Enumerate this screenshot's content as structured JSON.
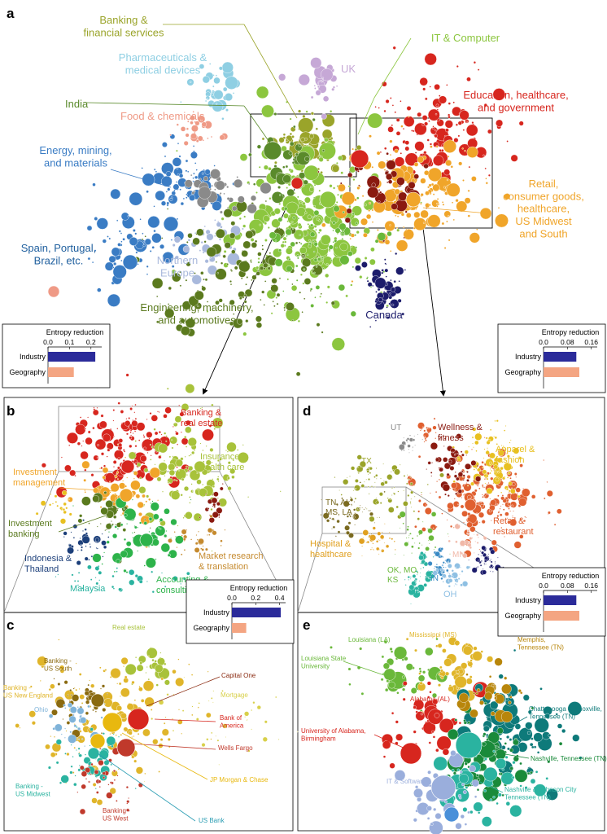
{
  "panels": {
    "a": {
      "letter": "a",
      "labels": [
        {
          "id": "banking",
          "text": [
            "Banking &",
            "financial services"
          ],
          "color": "#9aa42a"
        },
        {
          "id": "pharma",
          "text": [
            "Pharmaceuticals &",
            "medical devices"
          ],
          "color": "#8fcfe3"
        },
        {
          "id": "uk",
          "text": [
            "UK"
          ],
          "color": "#c6a8d6"
        },
        {
          "id": "it",
          "text": [
            "IT & Computer"
          ],
          "color": "#8cc63f"
        },
        {
          "id": "india",
          "text": [
            "India"
          ],
          "color": "#5a8a2b"
        },
        {
          "id": "education",
          "text": [
            "Education, healthcare,",
            "and government"
          ],
          "color": "#d7261e"
        },
        {
          "id": "food",
          "text": [
            "Food & chemicals"
          ],
          "color": "#ef9a86"
        },
        {
          "id": "energy",
          "text": [
            "Energy, mining,",
            "and materials"
          ],
          "color": "#3a7cc4"
        },
        {
          "id": "retail",
          "text": [
            "Retail,",
            "consumer goods,",
            "healthcare,",
            "US Midwest",
            "and South"
          ],
          "color": "#f0a52a"
        },
        {
          "id": "spain",
          "text": [
            "Spain, Portugal,",
            "Brazil, etc."
          ],
          "color": "#1f5f9e"
        },
        {
          "id": "northern",
          "text": [
            "Northern",
            "Europe"
          ],
          "color": "#a9b9dc"
        },
        {
          "id": "engineering",
          "text": [
            "Engineering, machinery,",
            "and automotives"
          ],
          "color": "#5b7a1e"
        },
        {
          "id": "canada",
          "text": [
            "Canada"
          ],
          "color": "#1c1c6b"
        }
      ],
      "entropy": {
        "title": "Entropy reduction",
        "ticks": [
          "0.0",
          "0.1",
          "0.2"
        ],
        "rows": [
          "Industry",
          "Geography"
        ],
        "values": [
          0.22,
          0.12
        ]
      }
    },
    "a_right_entropy": {
      "title": "Entropy reduction",
      "ticks": [
        "0.0",
        "0.08",
        "0.16"
      ],
      "rows": [
        "Industry",
        "Geography"
      ],
      "values": [
        0.11,
        0.12
      ]
    },
    "b": {
      "letter": "b",
      "labels": [
        {
          "id": "banking_re",
          "text": [
            "Banking &",
            "real estate"
          ],
          "color": "#d7261e"
        },
        {
          "id": "insurance",
          "text": [
            "Insurance &",
            "health care"
          ],
          "color": "#a8c23a"
        },
        {
          "id": "invmgmt",
          "text": [
            "Investment",
            "management"
          ],
          "color": "#f0a52a"
        },
        {
          "id": "invbank",
          "text": [
            "Investment",
            "banking"
          ],
          "color": "#5a7a1e"
        },
        {
          "id": "market",
          "text": [
            "Market research",
            "& translation"
          ],
          "color": "#c58a2e"
        },
        {
          "id": "indonesia",
          "text": [
            "Indonesia &",
            "Thailand"
          ],
          "color": "#1c3f7a"
        },
        {
          "id": "malaysia",
          "text": [
            "Malaysia"
          ],
          "color": "#2ab3a0"
        },
        {
          "id": "accounting",
          "text": [
            "Accounting &",
            "consulting"
          ],
          "color": "#2db34a"
        }
      ],
      "entropy": {
        "title": "Entropy reduction",
        "ticks": [
          "0.0",
          "0.2",
          "0.4"
        ],
        "rows": [
          "Industry",
          "Geography"
        ],
        "values": [
          0.41,
          0.12
        ]
      }
    },
    "c": {
      "letter": "c",
      "labels": [
        {
          "id": "realestate",
          "text": [
            "Real estate"
          ],
          "color": "#a8c23a"
        },
        {
          "id": "bk_south",
          "text": [
            "Banking -",
            "US South"
          ],
          "color": "#8a6a10"
        },
        {
          "id": "bk_ne",
          "text": [
            "Banking -",
            "US New England"
          ],
          "color": "#e0b52a"
        },
        {
          "id": "capone",
          "text": [
            "Capital One"
          ],
          "color": "#8a2a10"
        },
        {
          "id": "mortgage",
          "text": [
            "Mortgage"
          ],
          "color": "#d8d04a"
        },
        {
          "id": "ohio",
          "text": [
            "Ohio"
          ],
          "color": "#7fb3d9"
        },
        {
          "id": "boa",
          "text": [
            "Bank of",
            "America"
          ],
          "color": "#d7261e"
        },
        {
          "id": "wells",
          "text": [
            "Wells Fargo"
          ],
          "color": "#c0392b"
        },
        {
          "id": "jpm",
          "text": [
            "JP Morgan & Chase"
          ],
          "color": "#e8b80f"
        },
        {
          "id": "bk_mw",
          "text": [
            "Banking -",
            "US Midwest"
          ],
          "color": "#2ab3a0"
        },
        {
          "id": "bk_west",
          "text": [
            "Banking -",
            "US West"
          ],
          "color": "#c0392b"
        },
        {
          "id": "usbank",
          "text": [
            "US Bank"
          ],
          "color": "#2a9db3"
        }
      ]
    },
    "d": {
      "letter": "d",
      "labels": [
        {
          "id": "ut",
          "text": [
            "UT"
          ],
          "color": "#8a8a8a"
        },
        {
          "id": "wellness",
          "text": [
            "Wellness &",
            "fitness"
          ],
          "color": "#8a1a10"
        },
        {
          "id": "tx",
          "text": [
            "TX"
          ],
          "color": "#9aa42a"
        },
        {
          "id": "apparel",
          "text": [
            "Apparel &",
            "fashion"
          ],
          "color": "#e8c020"
        },
        {
          "id": "tn",
          "text": [
            "TN, AL,",
            "MS, LA"
          ],
          "color": "#7a6a20"
        },
        {
          "id": "retailrest",
          "text": [
            "Retail &",
            "restaurant"
          ],
          "color": "#e06030"
        },
        {
          "id": "hospital",
          "text": [
            "Hospital &",
            "healthcare"
          ],
          "color": "#e0a020"
        },
        {
          "id": "mn",
          "text": [
            "MN"
          ],
          "color": "#f0b8a8"
        },
        {
          "id": "ok",
          "text": [
            "OK, MO,",
            "KS"
          ],
          "color": "#6ab83a"
        },
        {
          "id": "in",
          "text": [
            "IN"
          ],
          "color": "#3a8ac4"
        },
        {
          "id": "il",
          "text": [
            "IL"
          ],
          "color": "#2ab3a0"
        },
        {
          "id": "oh",
          "text": [
            "OH"
          ],
          "color": "#8fc0e3"
        },
        {
          "id": "mi",
          "text": [
            "MI"
          ],
          "color": "#1c1c6b"
        }
      ],
      "entropy": {
        "title": "Entropy reduction",
        "ticks": [
          "0.0",
          "0.08",
          "0.16"
        ],
        "rows": [
          "Industry",
          "Geography"
        ],
        "values": [
          0.11,
          0.12
        ]
      }
    },
    "e": {
      "letter": "e",
      "labels": [
        {
          "id": "la",
          "text": [
            "Louisiana (LA)"
          ],
          "color": "#6ab83a"
        },
        {
          "id": "ms",
          "text": [
            "Mississippi (MS)"
          ],
          "color": "#e0b52a"
        },
        {
          "id": "lsu",
          "text": [
            "Louisiana State",
            "University"
          ],
          "color": "#6ab83a"
        },
        {
          "id": "memphis",
          "text": [
            "Memphis,",
            "Tennessee (TN)"
          ],
          "color": "#b8860b"
        },
        {
          "id": "al",
          "text": [
            "Alabama (AL)"
          ],
          "color": "#d7261e"
        },
        {
          "id": "chatt",
          "text": [
            "Chattanooga & Knoxville,",
            "Tennessee (TN)"
          ],
          "color": "#0e7a7a"
        },
        {
          "id": "uab",
          "text": [
            "University of Alabama,",
            "Birmingham"
          ],
          "color": "#d7261e"
        },
        {
          "id": "nashville",
          "text": [
            "Nashville, Tennessee (TN)"
          ],
          "color": "#1a8a3a"
        },
        {
          "id": "itsw",
          "text": [
            "IT & Software"
          ],
          "color": "#9aaedc"
        },
        {
          "id": "nashjc",
          "text": [
            "Nashville & Johnson City",
            "Tennessee (TN)"
          ],
          "color": "#2ab3a0"
        }
      ]
    }
  }
}
